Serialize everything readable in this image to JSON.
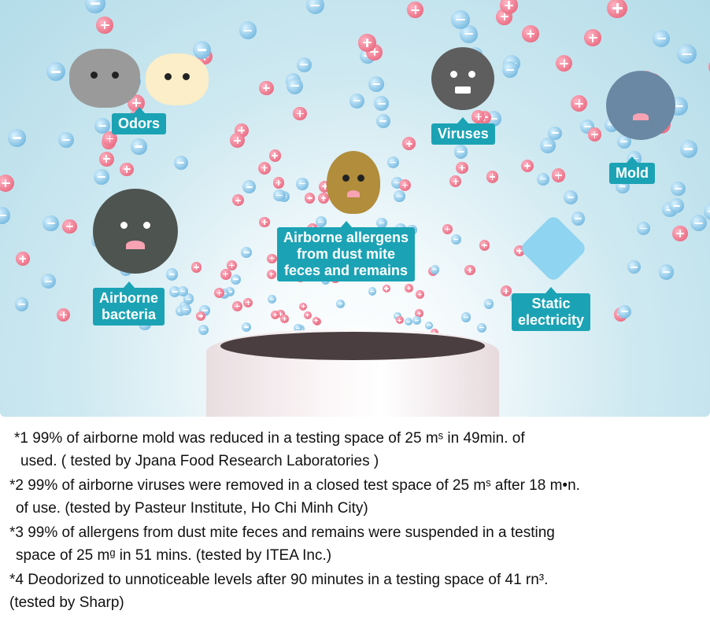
{
  "illustration": {
    "labels": {
      "odors": "Odors",
      "viruses": "Viruses",
      "mold": "Mold",
      "allergens": [
        "Airborne allergens",
        "from dust mite",
        "feces and remains"
      ],
      "bacteria": [
        "Airborne",
        "bacteria"
      ],
      "static": [
        "Static",
        "electricity"
      ]
    },
    "colors": {
      "label_bg": "#1ba3b5",
      "positive_ion": "#e2566f",
      "negative_ion": "#58a8d6"
    }
  },
  "footnotes": [
    {
      "line1": "*1 99% of airborne mold was reduced in a testing space of 25 mˢ in 49min. of",
      "line2": "  used. ( tested by Jpana Food Research Laboratories )"
    },
    {
      "line1": "*2 99% of airborne viruses were removed in a closed test space of 25 mˢ after 18 m•n.",
      "line2": " of use. (tested by Pasteur Institute, Ho Chi Minh City)"
    },
    {
      "line1": "*3 99% of allergens from dust mite feces and remains were suspended in a testing",
      "line2": " space of 25 mᵍ in 51 mins. (tested by ITEA Inc.)"
    },
    {
      "line1": "*4 Deodorized to unnoticeable levels after 90 minutes in a testing space of 41 rn³.",
      "line2": "(tested by Sharp)"
    }
  ]
}
